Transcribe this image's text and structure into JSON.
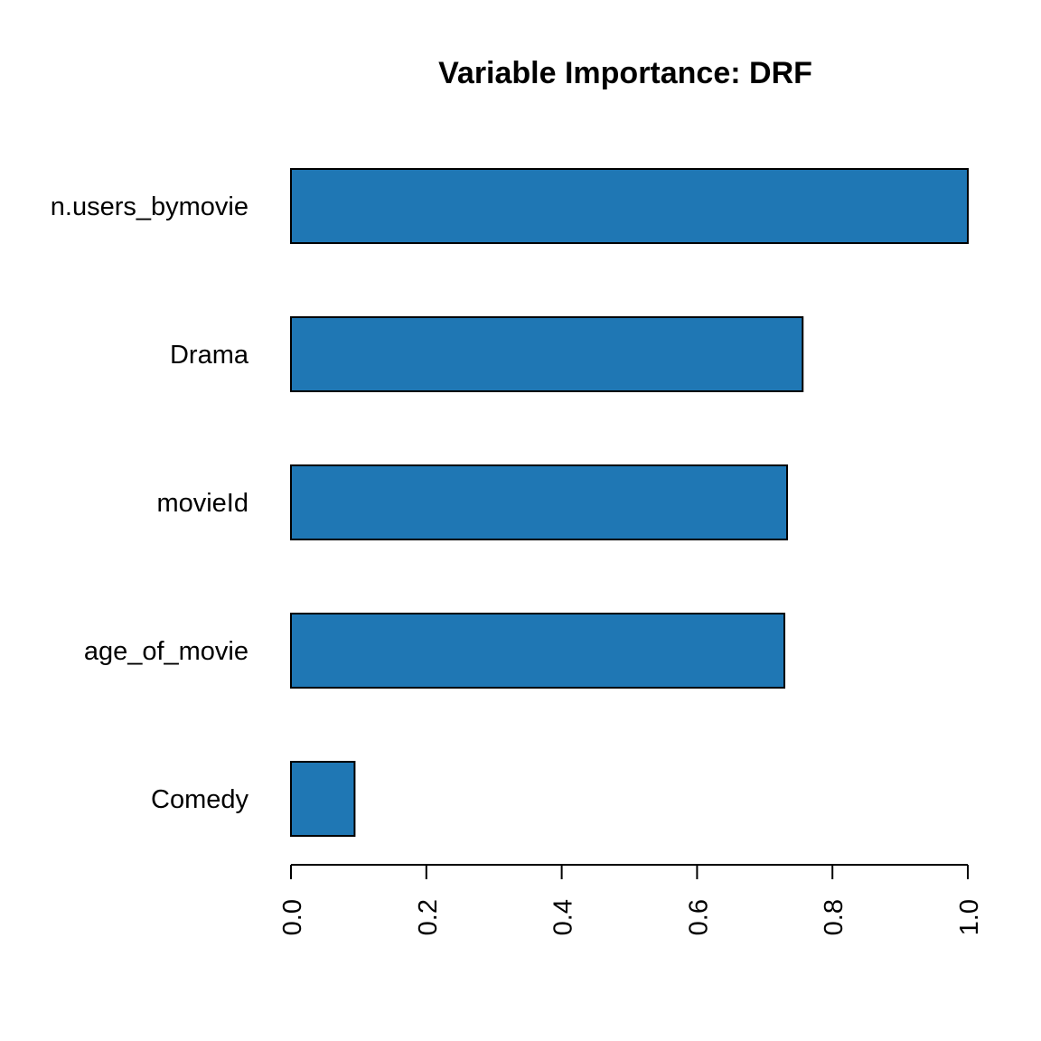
{
  "chart_data": {
    "type": "bar",
    "orientation": "horizontal",
    "title": "Variable Importance: DRF",
    "xlabel": "",
    "ylabel": "",
    "categories": [
      "n.users_bymovie",
      "Drama",
      "movieId",
      "age_of_movie",
      "Comedy"
    ],
    "values": [
      1.0,
      0.756,
      0.733,
      0.729,
      0.094
    ],
    "xlim": [
      0,
      1
    ],
    "ticks": [
      {
        "value": 0.0,
        "label": "0.0"
      },
      {
        "value": 0.2,
        "label": "0.2"
      },
      {
        "value": 0.4,
        "label": "0.4"
      },
      {
        "value": 0.6,
        "label": "0.6"
      },
      {
        "value": 0.8,
        "label": "0.8"
      },
      {
        "value": 1.0,
        "label": "1.0"
      }
    ],
    "grid": false,
    "bar_color": "#1f77b4"
  }
}
